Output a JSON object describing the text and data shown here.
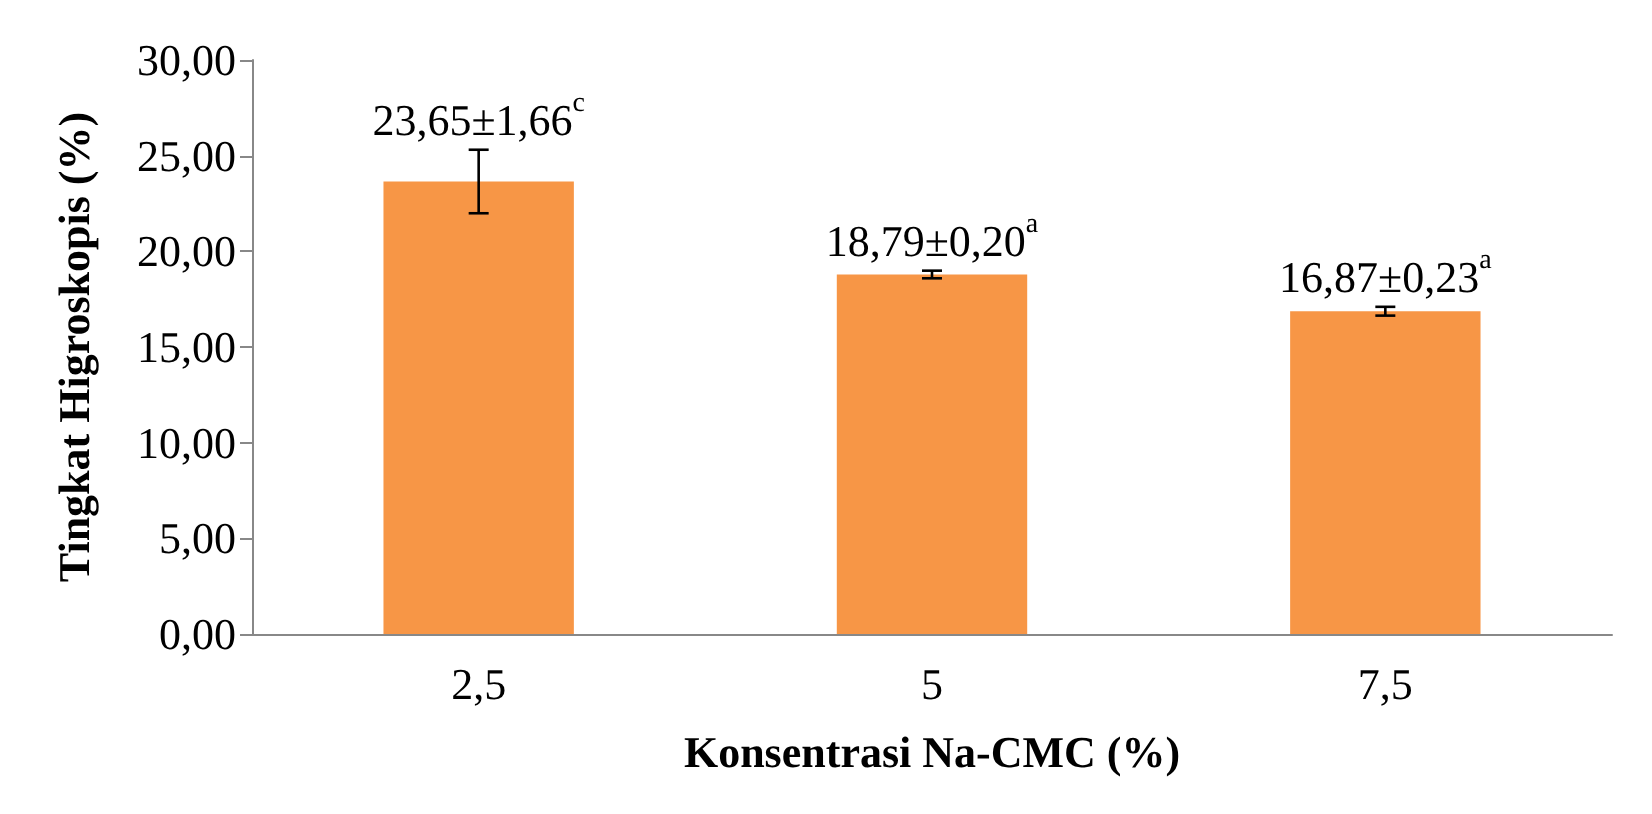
{
  "chart_data": {
    "type": "bar",
    "xlabel": "Konsentrasi Na-CMC (%)",
    "ylabel": "Tingkat Higroskopis (%)",
    "categories": [
      "2,5",
      "5",
      "7,5"
    ],
    "values": [
      23.65,
      18.79,
      16.87
    ],
    "errors": [
      1.66,
      0.2,
      0.23
    ],
    "value_labels": [
      "23,65±1,66$^{c}$",
      "18,79±0,20$^{a}$",
      "16,87±0,23$^{a}$"
    ],
    "color": "#f79646",
    "ylim": [
      0,
      30
    ],
    "yticks": [
      {
        "value": 0,
        "label": "0,00"
      },
      {
        "value": 5,
        "label": "5,00"
      },
      {
        "value": 10,
        "label": "10,00"
      },
      {
        "value": 15,
        "label": "15,00"
      },
      {
        "value": 20,
        "label": "20,00"
      },
      {
        "value": 25,
        "label": "25,00"
      },
      {
        "value": 30,
        "label": "30,00"
      }
    ],
    "grid": false
  }
}
